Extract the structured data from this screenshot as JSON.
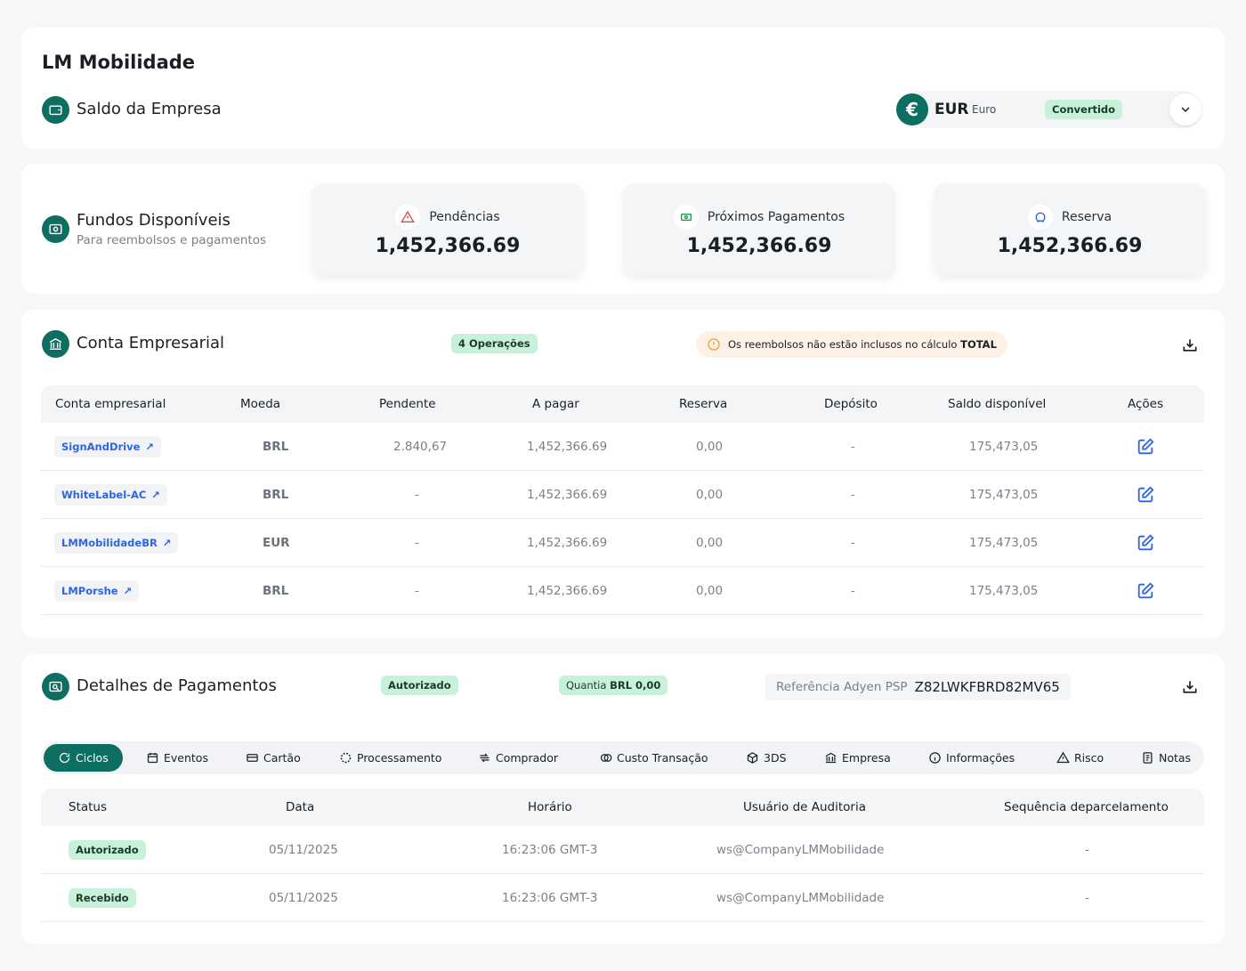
{
  "company": {
    "name": "LM Mobilidade"
  },
  "balance": {
    "title": "Saldo da Empresa",
    "currency_code": "EUR",
    "currency_name": "Euro",
    "status": "Convertido"
  },
  "funds": {
    "title": "Fundos Disponíveis",
    "subtitle": "Para reembolsos e pagamentos",
    "stats": [
      {
        "label": "Pendências",
        "value": "1,452,366.69",
        "icon": "alert-triangle-icon"
      },
      {
        "label": "Próximos Pagamentos",
        "value": "1,452,366.69",
        "icon": "money-icon"
      },
      {
        "label": "Reserva",
        "value": "1,452,366.69",
        "icon": "piggy-bank-icon"
      }
    ]
  },
  "account": {
    "title": "Conta Empresarial",
    "operations_badge": "4 Operações",
    "notice_text": "Os reembolsos não estão inclusos no cálculo",
    "notice_bold": "TOTAL",
    "columns": [
      "Conta empresarial",
      "Moeda",
      "Pendente",
      "A pagar",
      "Reserva",
      "Depósito",
      "Saldo disponível",
      "Ações"
    ],
    "rows": [
      {
        "name": "SignAndDrive",
        "currency": "BRL",
        "pending": "2.840,67",
        "to_pay": "1,452,366.69",
        "reserve": "0,00",
        "deposit": "-",
        "available": "175,473,05"
      },
      {
        "name": "WhiteLabel-AC",
        "currency": "BRL",
        "pending": "-",
        "to_pay": "1,452,366.69",
        "reserve": "0,00",
        "deposit": "-",
        "available": "175,473,05"
      },
      {
        "name": "LMMobilidadeBR",
        "currency": "EUR",
        "pending": "-",
        "to_pay": "1,452,366.69",
        "reserve": "0,00",
        "deposit": "-",
        "available": "175,473,05"
      },
      {
        "name": "LMPorshe",
        "currency": "BRL",
        "pending": "-",
        "to_pay": "1,452,366.69",
        "reserve": "0,00",
        "deposit": "-",
        "available": "175,473,05"
      }
    ]
  },
  "payments": {
    "title": "Detalhes de Pagamentos",
    "status_badge": "Autorizado",
    "amount_label": "Quantia",
    "amount_value": "BRL 0,00",
    "reference_label": "Referência Adyen PSP",
    "reference_value": "Z82LWKFBRD82MV65",
    "tabs": [
      "Ciclos",
      "Eventos",
      "Cartão",
      "Processamento",
      "Comprador",
      "Custo Transação",
      "3DS",
      "Empresa",
      "Informações",
      "Risco",
      "Notas"
    ],
    "columns": [
      "Status",
      "Data",
      "Horário",
      "Usuário de Auditoria",
      "Sequência deparcelamento"
    ],
    "rows": [
      {
        "status": "Autorizado",
        "date": "05/11/2025",
        "time": "16:23:06 GMT-3",
        "user": "ws@CompanyLMMobilidade",
        "sequence": "-"
      },
      {
        "status": "Recebido",
        "date": "05/11/2025",
        "time": "16:23:06 GMT-3",
        "user": "ws@CompanyLMMobilidade",
        "sequence": "-"
      }
    ]
  },
  "colors": {
    "brand": "#0e6e62",
    "badge_green": "#c7f2d9",
    "link_blue": "#2f66e0",
    "notice_bg": "#fdf1e6"
  }
}
